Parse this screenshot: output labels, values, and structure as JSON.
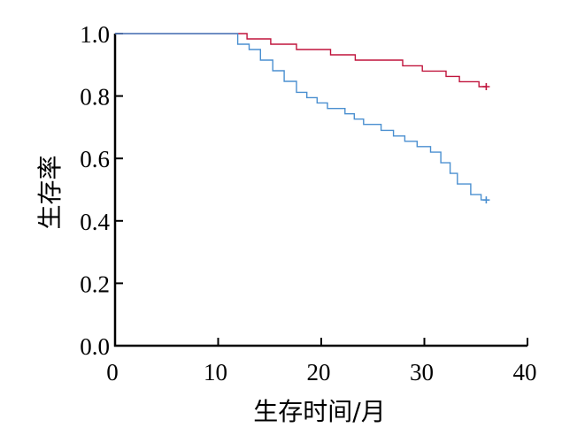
{
  "chart_data": {
    "type": "line",
    "subtype": "kaplan-meier-step",
    "title": "",
    "xlabel": "生存时间/月",
    "ylabel": "生存率",
    "xlim": [
      0,
      40
    ],
    "ylim": [
      0,
      1
    ],
    "x_ticks": [
      0,
      10,
      20,
      30,
      40
    ],
    "x_tick_labels": [
      "0",
      "10",
      "20",
      "30",
      "40"
    ],
    "y_ticks": [
      0,
      0.2,
      0.4,
      0.6,
      0.8,
      1.0
    ],
    "y_tick_labels": [
      "0.0",
      "0.2",
      "0.4",
      "0.6",
      "0.8",
      "1.0"
    ],
    "grid": false,
    "legend": "none",
    "series": [
      {
        "color": "#c0143c",
        "censored_at": [
          [
            36,
            0.83
          ]
        ],
        "points": [
          [
            0,
            1.0
          ],
          [
            12.8,
            1.0
          ],
          [
            12.8,
            0.983
          ],
          [
            15.1,
            0.983
          ],
          [
            15.1,
            0.966
          ],
          [
            17.6,
            0.966
          ],
          [
            17.6,
            0.949
          ],
          [
            20.9,
            0.949
          ],
          [
            20.9,
            0.932
          ],
          [
            23.3,
            0.932
          ],
          [
            23.3,
            0.915
          ],
          [
            27.9,
            0.915
          ],
          [
            27.9,
            0.897
          ],
          [
            29.8,
            0.897
          ],
          [
            29.8,
            0.88
          ],
          [
            32.1,
            0.88
          ],
          [
            32.1,
            0.863
          ],
          [
            33.4,
            0.863
          ],
          [
            33.4,
            0.846
          ],
          [
            35.3,
            0.846
          ],
          [
            35.3,
            0.83
          ],
          [
            36,
            0.83
          ]
        ]
      },
      {
        "color": "#4a8fd0",
        "censored_at": [
          [
            36,
            0.467
          ]
        ],
        "points": [
          [
            0,
            1.0
          ],
          [
            11.9,
            1.0
          ],
          [
            11.9,
            0.966
          ],
          [
            13.0,
            0.966
          ],
          [
            13.0,
            0.949
          ],
          [
            14.1,
            0.949
          ],
          [
            14.1,
            0.915
          ],
          [
            15.3,
            0.915
          ],
          [
            15.3,
            0.881
          ],
          [
            16.4,
            0.881
          ],
          [
            16.4,
            0.847
          ],
          [
            17.6,
            0.847
          ],
          [
            17.6,
            0.812
          ],
          [
            18.6,
            0.812
          ],
          [
            18.6,
            0.795
          ],
          [
            19.6,
            0.795
          ],
          [
            19.6,
            0.778
          ],
          [
            20.6,
            0.778
          ],
          [
            20.6,
            0.76
          ],
          [
            22.3,
            0.76
          ],
          [
            22.3,
            0.743
          ],
          [
            23.2,
            0.743
          ],
          [
            23.2,
            0.726
          ],
          [
            24.1,
            0.726
          ],
          [
            24.1,
            0.709
          ],
          [
            25.8,
            0.709
          ],
          [
            25.8,
            0.69
          ],
          [
            27.0,
            0.69
          ],
          [
            27.0,
            0.672
          ],
          [
            28.1,
            0.672
          ],
          [
            28.1,
            0.655
          ],
          [
            29.3,
            0.655
          ],
          [
            29.3,
            0.638
          ],
          [
            30.6,
            0.638
          ],
          [
            30.6,
            0.62
          ],
          [
            31.6,
            0.62
          ],
          [
            31.6,
            0.586
          ],
          [
            32.5,
            0.586
          ],
          [
            32.5,
            0.552
          ],
          [
            33.2,
            0.552
          ],
          [
            33.2,
            0.518
          ],
          [
            34.5,
            0.518
          ],
          [
            34.5,
            0.484
          ],
          [
            35.5,
            0.484
          ],
          [
            35.5,
            0.467
          ],
          [
            36,
            0.467
          ]
        ]
      }
    ]
  }
}
